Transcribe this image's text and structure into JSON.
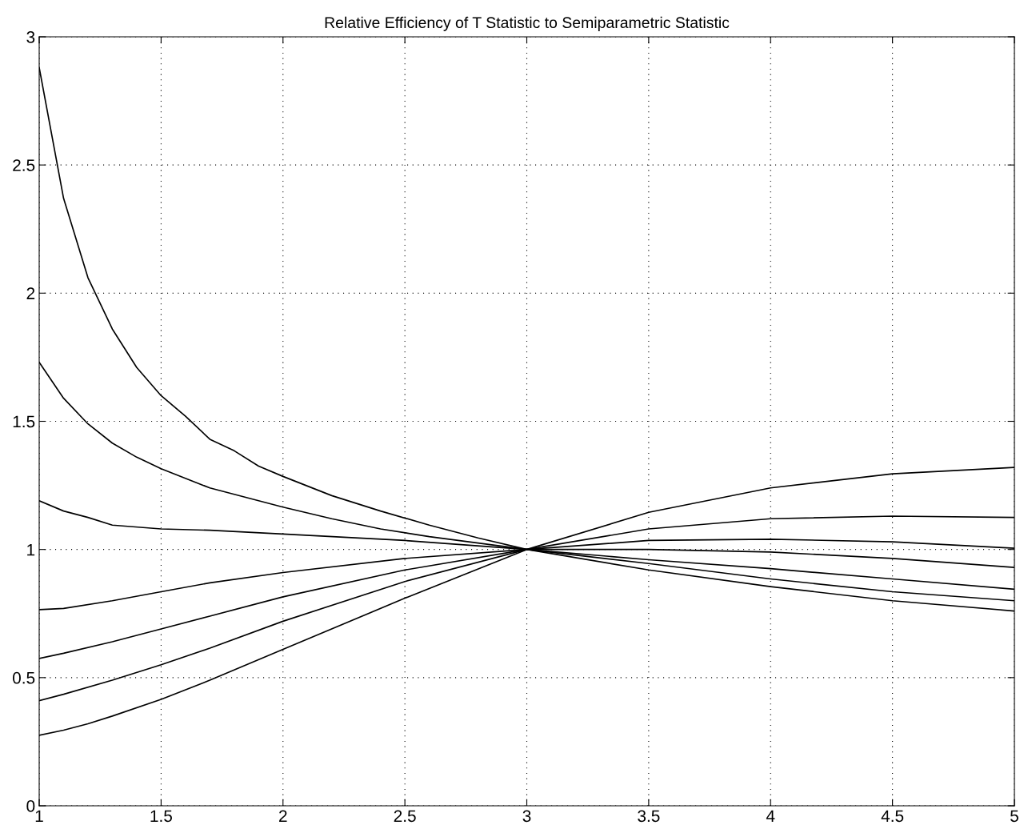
{
  "chart_data": {
    "type": "line",
    "title": "Relative Efficiency of T Statistic to Semiparametric Statistic",
    "xlim": [
      1,
      5
    ],
    "xticks": [
      1,
      1.5,
      2,
      2.5,
      3,
      3.5,
      4,
      4.5,
      5
    ],
    "ylim": [
      0,
      3
    ],
    "yticks": [
      0,
      0.5,
      1,
      1.5,
      2,
      2.5,
      3
    ],
    "grid": true,
    "line_style": "solid",
    "series": [
      {
        "color": "#000000",
        "x": [
          1,
          1.1,
          1.2,
          1.3,
          1.4,
          1.5,
          1.6,
          1.7,
          1.8,
          1.9,
          2,
          2.2,
          2.4,
          2.6,
          2.8,
          3,
          3.5,
          4,
          4.5,
          5
        ],
        "values": [
          2.88,
          2.37,
          2.06,
          1.86,
          1.71,
          1.6,
          1.52,
          1.43,
          1.385,
          1.325,
          1.285,
          1.21,
          1.15,
          1.095,
          1.045,
          1,
          0.92,
          0.855,
          0.8,
          0.76
        ]
      },
      {
        "color": "#000000",
        "x": [
          1,
          1.1,
          1.2,
          1.3,
          1.4,
          1.5,
          1.7,
          1.9,
          2,
          2.2,
          2.4,
          2.6,
          2.8,
          3,
          3.5,
          4,
          4.5,
          5
        ],
        "values": [
          1.73,
          1.59,
          1.49,
          1.415,
          1.36,
          1.315,
          1.24,
          1.19,
          1.165,
          1.12,
          1.08,
          1.05,
          1.025,
          1,
          0.945,
          0.885,
          0.835,
          0.8
        ]
      },
      {
        "color": "#000000",
        "x": [
          1,
          1.1,
          1.2,
          1.3,
          1.5,
          1.7,
          2,
          2.5,
          3,
          3.5,
          4,
          4.5,
          5
        ],
        "values": [
          1.19,
          1.15,
          1.125,
          1.095,
          1.08,
          1.075,
          1.06,
          1.035,
          1,
          0.96,
          0.925,
          0.885,
          0.845
        ]
      },
      {
        "color": "#000000",
        "x": [
          1,
          1.1,
          1.3,
          1.5,
          1.7,
          2,
          2.5,
          3,
          3.5,
          4,
          4.5,
          5
        ],
        "values": [
          0.765,
          0.77,
          0.8,
          0.835,
          0.87,
          0.91,
          0.965,
          1,
          1.0,
          0.99,
          0.965,
          0.93
        ]
      },
      {
        "color": "#000000",
        "x": [
          1,
          1.1,
          1.3,
          1.5,
          1.7,
          2,
          2.5,
          3,
          3.5,
          4,
          4.5,
          5
        ],
        "values": [
          0.575,
          0.595,
          0.64,
          0.69,
          0.74,
          0.815,
          0.92,
          1,
          1.035,
          1.04,
          1.03,
          1.005
        ]
      },
      {
        "color": "#000000",
        "x": [
          1,
          1.1,
          1.3,
          1.5,
          1.7,
          2,
          2.5,
          3,
          3.5,
          4,
          4.5,
          5
        ],
        "values": [
          0.41,
          0.435,
          0.49,
          0.55,
          0.615,
          0.72,
          0.875,
          1,
          1.08,
          1.12,
          1.13,
          1.125
        ]
      },
      {
        "color": "#000000",
        "x": [
          1,
          1.1,
          1.2,
          1.3,
          1.5,
          1.7,
          2,
          2.5,
          3,
          3.5,
          4,
          4.5,
          5
        ],
        "values": [
          0.275,
          0.295,
          0.32,
          0.35,
          0.415,
          0.49,
          0.61,
          0.81,
          1,
          1.145,
          1.24,
          1.295,
          1.32
        ]
      }
    ]
  }
}
